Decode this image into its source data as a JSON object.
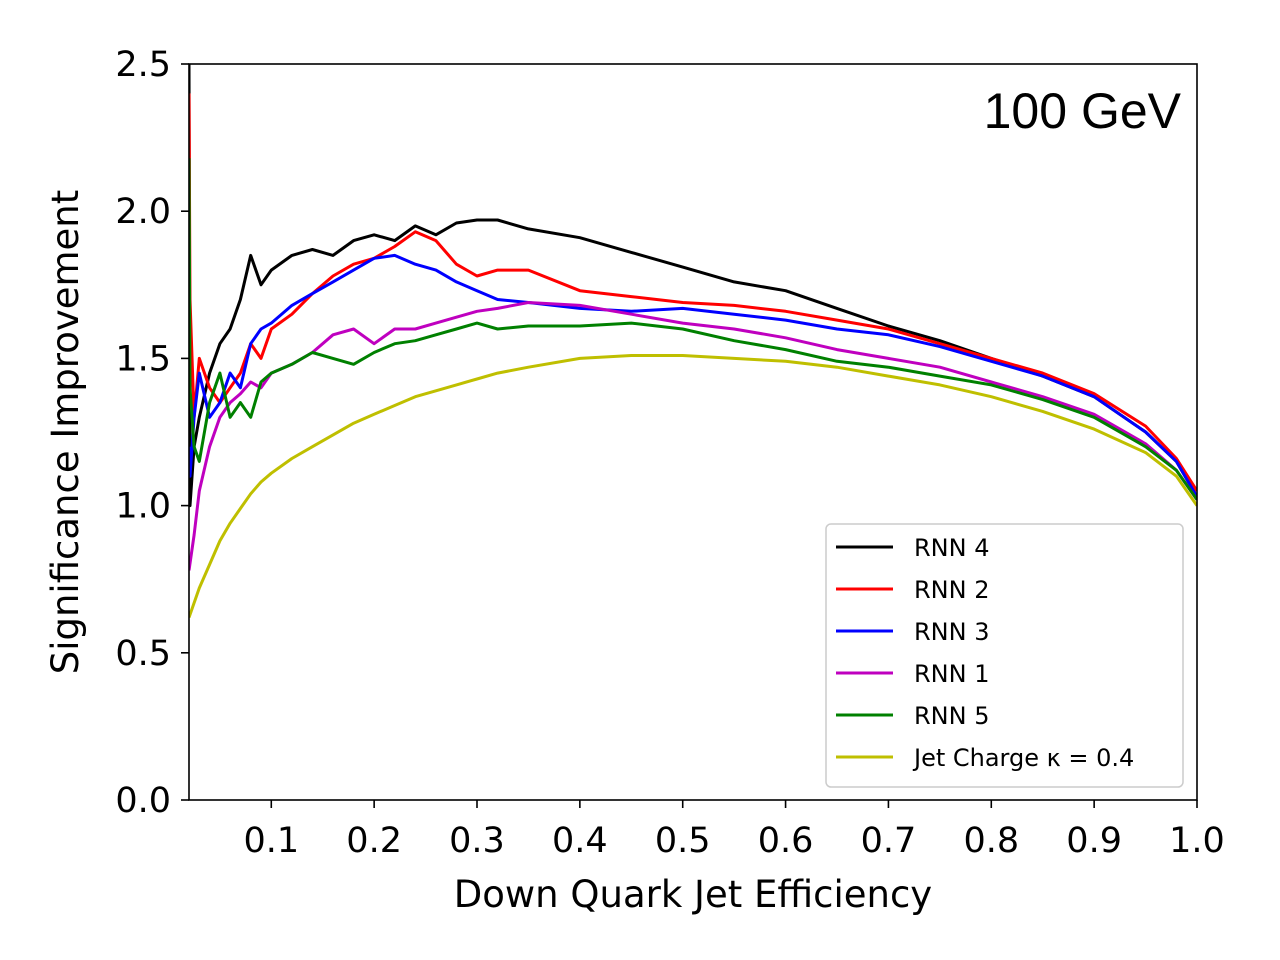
{
  "chart_data": {
    "type": "line",
    "title": "",
    "annotation": "100 GeV",
    "xlabel": "Down Quark Jet Efficiency",
    "ylabel": "Significance Improvement",
    "xlim": [
      0.02,
      1.0
    ],
    "ylim": [
      0.0,
      2.5
    ],
    "xticks": [
      0.1,
      0.2,
      0.3,
      0.4,
      0.5,
      0.6,
      0.7,
      0.8,
      0.9,
      1.0
    ],
    "xtick_labels": [
      "0.1",
      "0.2",
      "0.3",
      "0.4",
      "0.5",
      "0.6",
      "0.7",
      "0.8",
      "0.9",
      "1.0"
    ],
    "yticks": [
      0.0,
      0.5,
      1.0,
      1.5,
      2.0,
      2.5
    ],
    "ytick_labels": [
      "0.0",
      "0.5",
      "1.0",
      "1.5",
      "2.0",
      "2.5"
    ],
    "legend_position": "lower-right",
    "series": [
      {
        "name": "RNN 4",
        "color": "#000000",
        "x": [
          0.02,
          0.021,
          0.025,
          0.03,
          0.04,
          0.05,
          0.06,
          0.07,
          0.08,
          0.09,
          0.1,
          0.12,
          0.14,
          0.16,
          0.18,
          0.2,
          0.22,
          0.24,
          0.26,
          0.28,
          0.3,
          0.32,
          0.35,
          0.4,
          0.45,
          0.5,
          0.55,
          0.6,
          0.65,
          0.7,
          0.75,
          0.8,
          0.85,
          0.9,
          0.95,
          0.98,
          1.0
        ],
        "y": [
          2.5,
          1.0,
          1.2,
          1.3,
          1.45,
          1.55,
          1.6,
          1.7,
          1.85,
          1.75,
          1.8,
          1.85,
          1.87,
          1.85,
          1.9,
          1.92,
          1.9,
          1.95,
          1.92,
          1.96,
          1.97,
          1.97,
          1.94,
          1.91,
          1.86,
          1.81,
          1.76,
          1.73,
          1.67,
          1.61,
          1.56,
          1.5,
          1.44,
          1.37,
          1.25,
          1.15,
          1.03
        ]
      },
      {
        "name": "RNN 2",
        "color": "#ff0000",
        "x": [
          0.02,
          0.021,
          0.025,
          0.03,
          0.04,
          0.05,
          0.06,
          0.07,
          0.08,
          0.09,
          0.1,
          0.12,
          0.14,
          0.16,
          0.18,
          0.2,
          0.22,
          0.24,
          0.26,
          0.28,
          0.3,
          0.32,
          0.35,
          0.4,
          0.45,
          0.5,
          0.55,
          0.6,
          0.65,
          0.7,
          0.75,
          0.8,
          0.85,
          0.9,
          0.95,
          0.98,
          1.0
        ],
        "y": [
          2.4,
          1.7,
          1.3,
          1.5,
          1.4,
          1.35,
          1.4,
          1.45,
          1.55,
          1.5,
          1.6,
          1.65,
          1.72,
          1.78,
          1.82,
          1.84,
          1.88,
          1.93,
          1.9,
          1.82,
          1.78,
          1.8,
          1.8,
          1.73,
          1.71,
          1.69,
          1.68,
          1.66,
          1.63,
          1.6,
          1.55,
          1.5,
          1.45,
          1.38,
          1.27,
          1.16,
          1.05
        ]
      },
      {
        "name": "RNN 3",
        "color": "#0000ff",
        "x": [
          0.02,
          0.021,
          0.025,
          0.03,
          0.04,
          0.05,
          0.06,
          0.07,
          0.08,
          0.09,
          0.1,
          0.12,
          0.14,
          0.16,
          0.18,
          0.2,
          0.22,
          0.24,
          0.26,
          0.28,
          0.3,
          0.32,
          0.35,
          0.4,
          0.45,
          0.5,
          0.55,
          0.6,
          0.65,
          0.7,
          0.75,
          0.8,
          0.85,
          0.9,
          0.95,
          0.98,
          1.0
        ],
        "y": [
          1.2,
          1.1,
          1.3,
          1.45,
          1.3,
          1.35,
          1.45,
          1.4,
          1.55,
          1.6,
          1.62,
          1.68,
          1.72,
          1.76,
          1.8,
          1.84,
          1.85,
          1.82,
          1.8,
          1.76,
          1.73,
          1.7,
          1.69,
          1.67,
          1.66,
          1.67,
          1.65,
          1.63,
          1.6,
          1.58,
          1.54,
          1.49,
          1.44,
          1.37,
          1.25,
          1.15,
          1.03
        ]
      },
      {
        "name": "RNN 1",
        "color": "#bf00bf",
        "x": [
          0.02,
          0.025,
          0.03,
          0.04,
          0.05,
          0.06,
          0.07,
          0.08,
          0.09,
          0.1,
          0.12,
          0.14,
          0.16,
          0.18,
          0.2,
          0.22,
          0.24,
          0.26,
          0.28,
          0.3,
          0.32,
          0.35,
          0.4,
          0.45,
          0.5,
          0.55,
          0.6,
          0.65,
          0.7,
          0.75,
          0.8,
          0.85,
          0.9,
          0.95,
          0.98,
          1.0
        ],
        "y": [
          0.78,
          0.9,
          1.05,
          1.2,
          1.3,
          1.35,
          1.38,
          1.42,
          1.4,
          1.45,
          1.48,
          1.52,
          1.58,
          1.6,
          1.55,
          1.6,
          1.6,
          1.62,
          1.64,
          1.66,
          1.67,
          1.69,
          1.68,
          1.65,
          1.62,
          1.6,
          1.57,
          1.53,
          1.5,
          1.47,
          1.42,
          1.37,
          1.31,
          1.21,
          1.12,
          1.02
        ]
      },
      {
        "name": "RNN 5",
        "color": "#008000",
        "x": [
          0.02,
          0.021,
          0.025,
          0.03,
          0.04,
          0.05,
          0.06,
          0.07,
          0.08,
          0.09,
          0.1,
          0.12,
          0.14,
          0.16,
          0.18,
          0.2,
          0.22,
          0.24,
          0.26,
          0.28,
          0.3,
          0.32,
          0.35,
          0.4,
          0.45,
          0.5,
          0.55,
          0.6,
          0.65,
          0.7,
          0.75,
          0.8,
          0.85,
          0.9,
          0.95,
          0.98,
          1.0
        ],
        "y": [
          2.18,
          1.4,
          1.2,
          1.15,
          1.35,
          1.45,
          1.3,
          1.35,
          1.3,
          1.42,
          1.45,
          1.48,
          1.52,
          1.5,
          1.48,
          1.52,
          1.55,
          1.56,
          1.58,
          1.6,
          1.62,
          1.6,
          1.61,
          1.61,
          1.62,
          1.6,
          1.56,
          1.53,
          1.49,
          1.47,
          1.44,
          1.41,
          1.36,
          1.3,
          1.2,
          1.12,
          1.02
        ]
      },
      {
        "name": "Jet Charge κ = 0.4",
        "color": "#bfbf00",
        "x": [
          0.02,
          0.03,
          0.04,
          0.05,
          0.06,
          0.07,
          0.08,
          0.09,
          0.1,
          0.12,
          0.14,
          0.16,
          0.18,
          0.2,
          0.22,
          0.24,
          0.26,
          0.28,
          0.3,
          0.32,
          0.35,
          0.4,
          0.45,
          0.5,
          0.55,
          0.6,
          0.65,
          0.7,
          0.75,
          0.8,
          0.85,
          0.9,
          0.95,
          0.98,
          1.0
        ],
        "y": [
          0.62,
          0.72,
          0.8,
          0.88,
          0.94,
          0.99,
          1.04,
          1.08,
          1.11,
          1.16,
          1.2,
          1.24,
          1.28,
          1.31,
          1.34,
          1.37,
          1.39,
          1.41,
          1.43,
          1.45,
          1.47,
          1.5,
          1.51,
          1.51,
          1.5,
          1.49,
          1.47,
          1.44,
          1.41,
          1.37,
          1.32,
          1.26,
          1.18,
          1.1,
          1.0
        ]
      }
    ]
  }
}
